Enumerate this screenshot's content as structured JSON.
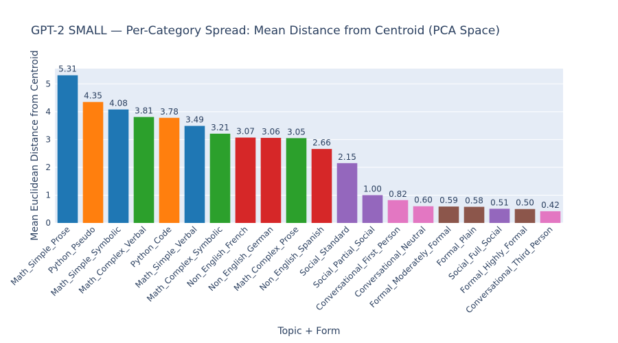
{
  "chart_data": {
    "type": "bar",
    "title": "GPT-2 SMALL — Per-Category Spread: Mean Distance from Centroid (PCA Space)",
    "xlabel": "Topic + Form",
    "ylabel": "Mean Euclidean Distance from Centroid",
    "ylim": [
      0,
      5.55
    ],
    "yticks": [
      "0",
      "1",
      "2",
      "3",
      "4",
      "5"
    ],
    "grid": true,
    "categories": [
      "Math_Simple_Prose",
      "Python_Pseudo",
      "Math_Simple_Symbolic",
      "Math_Complex_Verbal",
      "Python_Code",
      "Math_Simple_Verbal",
      "Math_Complex_Symbolic",
      "Non_English_French",
      "Non_English_German",
      "Math_Complex_Prose",
      "Non_English_Spanish",
      "Social_Standard",
      "Social_Partial_Social",
      "Conversational_First_Person",
      "Conversational_Neutral",
      "Formal_Moderately_Formal",
      "Formal_Plain",
      "Social_Full_Social",
      "Formal_Highly_Formal",
      "Conversational_Third_Person"
    ],
    "values": [
      5.31,
      4.35,
      4.08,
      3.81,
      3.78,
      3.49,
      3.21,
      3.07,
      3.06,
      3.05,
      2.66,
      2.15,
      1.0,
      0.82,
      0.6,
      0.59,
      0.58,
      0.51,
      0.5,
      0.42
    ],
    "labels": [
      "5.31",
      "4.35",
      "4.08",
      "3.81",
      "3.78",
      "3.49",
      "3.21",
      "3.07",
      "3.06",
      "3.05",
      "2.66",
      "2.15",
      "1.00",
      "0.82",
      "0.60",
      "0.59",
      "0.58",
      "0.51",
      "0.50",
      "0.42"
    ],
    "colors": [
      "#1f77b4",
      "#ff7f0e",
      "#1f77b4",
      "#2ca02c",
      "#ff7f0e",
      "#1f77b4",
      "#2ca02c",
      "#d62728",
      "#d62728",
      "#2ca02c",
      "#d62728",
      "#9467bd",
      "#9467bd",
      "#e377c2",
      "#e377c2",
      "#8c564b",
      "#8c564b",
      "#9467bd",
      "#8c564b",
      "#e377c2"
    ]
  },
  "style": {
    "plot_bg": "#e5ecf6",
    "grid_color": "#ffffff",
    "text_color": "#2a3f5f"
  }
}
